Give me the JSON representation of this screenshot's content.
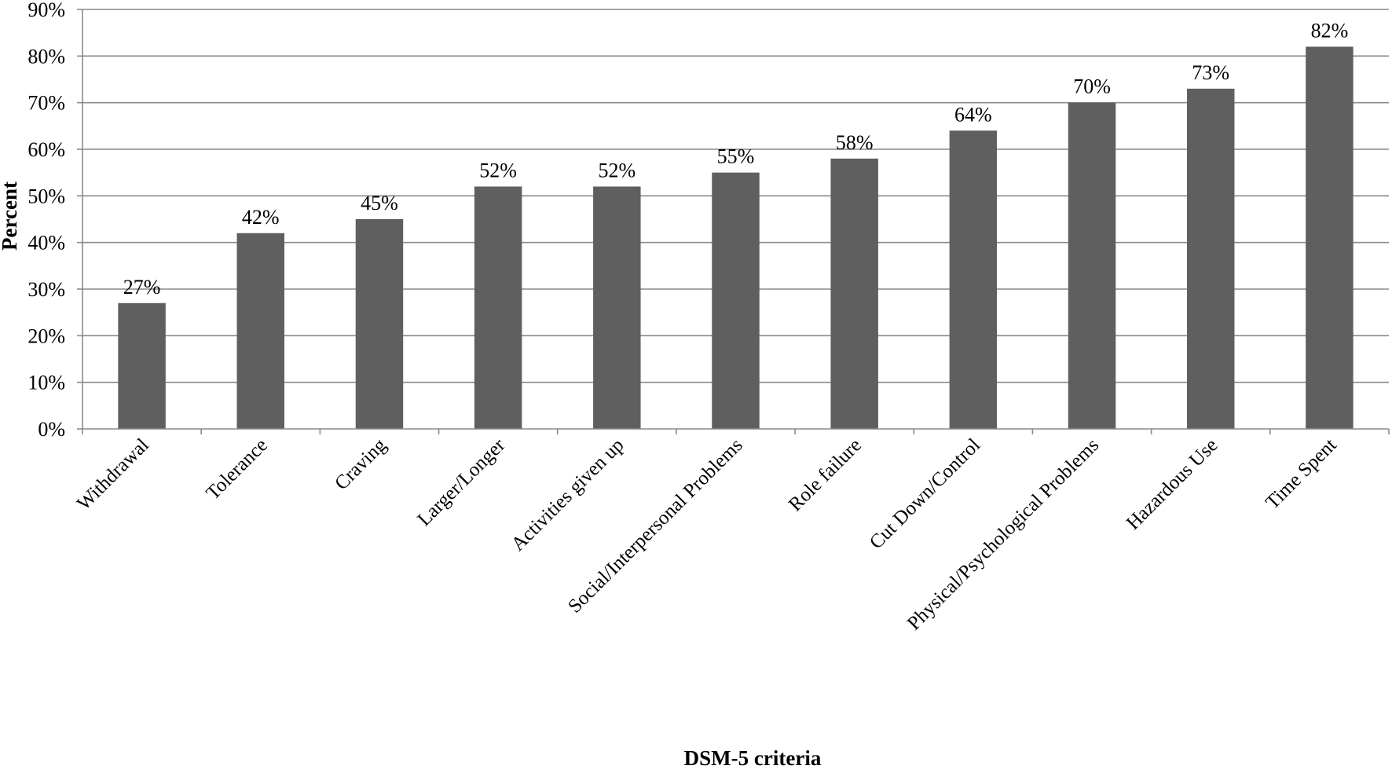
{
  "chart_data": {
    "type": "bar",
    "categories": [
      "Withdrawal",
      "Tolerance",
      "Craving",
      "Larger/Longer",
      "Activities given up",
      "Social/Interpersonal Problems",
      "Role failure",
      "Cut Down/Control",
      "Physical/Psychological Problems",
      "Hazardous Use",
      "Time Spent"
    ],
    "values": [
      27,
      42,
      45,
      52,
      52,
      55,
      58,
      64,
      70,
      73,
      82
    ],
    "data_labels": [
      "27%",
      "42%",
      "45%",
      "52%",
      "52%",
      "55%",
      "58%",
      "64%",
      "70%",
      "73%",
      "82%"
    ],
    "title": "",
    "xlabel": "DSM-5 criteria",
    "ylabel": "Percent",
    "ylim": [
      0,
      90
    ],
    "yticks": [
      0,
      10,
      20,
      30,
      40,
      50,
      60,
      70,
      80,
      90
    ],
    "ytick_labels": [
      "0%",
      "10%",
      "20%",
      "30%",
      "40%",
      "50%",
      "60%",
      "70%",
      "80%",
      "90%"
    ],
    "grid": true,
    "legend": "none",
    "colors": {
      "bar": "#5f5f5f",
      "grid": "#8a8a8a",
      "axis": "#8a8a8a"
    }
  }
}
